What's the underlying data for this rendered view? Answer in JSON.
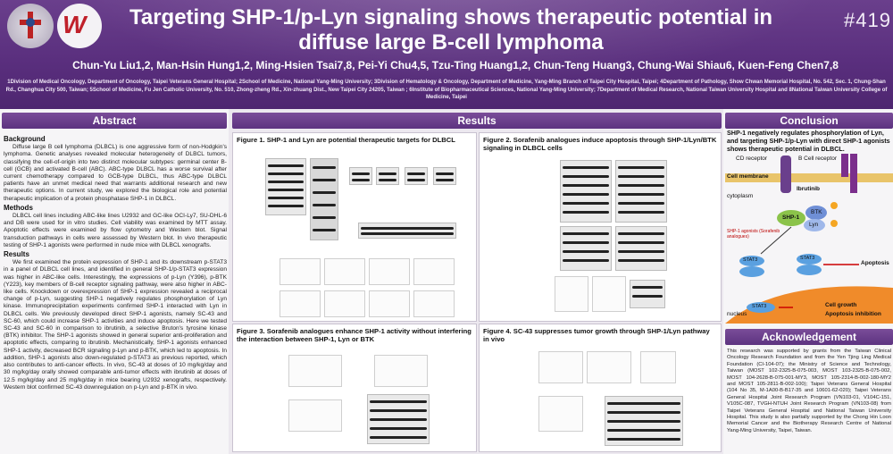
{
  "header": {
    "title": "Targeting SHP-1/p-Lyn signaling shows therapeutic potential in diffuse large B-cell lymphoma",
    "poster_number": "#419",
    "authors": "Chun-Yu Liu1,2, Man-Hsin Hung1,2, Ming-Hsien Tsai7,8, Pei-Yi Chu4,5, Tzu-Ting Huang1,2, Chun-Teng Huang3, Chung-Wai Shiau6, Kuen-Feng Chen7,8",
    "affiliations": "1Division of Medical Oncology, Department of Oncology, Taipei Veterans General Hospital; 2School of Medicine, National Yang-Ming University; 3Division of Hematology & Oncology, Department of Medicine, Yang-Ming Branch of Taipei City Hospital, Taipei; 4Department of Pathology, Show Chwan Memorial Hospital, No. 542, Sec. 1, Chung-Shan Rd., Changhua City 500, Taiwan; 5School of Medicine, Fu Jen Catholic University, No. 510, Zhong-zheng Rd., Xin-zhuang Dist., New Taipei City 24205, Taiwan ; 6Institute of Biopharmaceutical Sciences, National Yang-Ming University; 7Department of Medical Research, National Taiwan University Hospital and 8National Taiwan University College of Medicine, Taipei",
    "logo_text": "W"
  },
  "abstract": {
    "heading": "Abstract",
    "background_heading": "Background",
    "background": "Diffuse large B cell lymphoma (DLBCL) is one aggressive form of non-Hodgkin's lymphoma. Genetic analyses revealed molecular heterogeneity of DLBCL tumors, classifying the cell-of-origin into two distinct molecular subtypes: germinal center B-cell (GCB) and activated B-cell (ABC). ABC-type DLBCL has a worse survival after current chemotherapy compared to GCB-type DLBCL, thus ABC-type DLBCL patients have an unmet medical need that warrants additional research and new therapeutic options. In current study, we explored the biological role and potential therapeutic implication of a protein phosphatase SHP-1 in DLBCL.",
    "methods_heading": "Methods",
    "methods": "DLBCL cell lines including ABC-like lines U2932 and GC-like OCI-Ly7, SU-DHL-6 and DB were used for in vitro studies. Cell viability was examined by MTT assay. Apoptotic effects were examined by flow cytometry and Western blot. Signal transduction pathways in cells were assessed by Western blot. In vivo therapeutic testing of SHP-1 agonists were performed in nude mice with DLBCL xenografts.",
    "results_heading": "Results",
    "results": "We first examined the protein expression of SHP-1 and its downstream p-STAT3 in a panel of DLBCL cell lines, and identified in general SHP-1/p-STAT3 expression was higher in ABC-like cells. Interestingly, the expressions of p-Lyn (Y396), p-BTK (Y223), key members of B-cell receptor signaling pathway, were also higher in ABC-like cells. Knockdown or overexpression of SHP-1 expression revealed a reciprocal change of p-Lyn, suggesting SHP-1 negatively regulates phosphorylation of Lyn kinase. Immunoprecipitation experiments confirmed SHP-1 interacted with Lyn in DLBCL cells. We previously developed direct SHP-1 agonists, namely SC-43 and SC-60, which could increase SHP-1 activities and induce apoptosis. Here we tested SC-43 and SC-60 in comparison to ibrutinib, a selective Bruton's tyrosine kinase (BTK) inhibitor. The SHP-1 agonists showed in general superior anti-proliferation and apoptotic effects, comparing to ibrutinib. Mechanistically, SHP-1 agonists enhanced SHP-1 activity, decreased BCR signaling p-Lyn and p-BTK, which led to apoptosis. In addition, SHP-1 agonists also down-regulated p-STAT3 as previous reported, which also contributes to anti-cancer effects. In vivo, SC-43 at doses of 10 mg/kg/day and 30 mg/kg/day orally showed comparable anti-tumor effects with ibrutinib at doses of 12.5 mg/kg/day and 25 mg/kg/day in mice bearing U2932 xenografts, respectively. Western blot confirmed SC-43 downregulation on p-Lyn and p-BTK in vivo."
  },
  "results": {
    "heading": "Results",
    "fig1": "Figure 1. SHP-1 and Lyn are potential therapeutic targets for DLBCL",
    "fig2": "Figure 2. Sorafenib analogues induce apoptosis through SHP-1/Lyn/BTK signaling in DLBCL cells",
    "fig3": "Figure 3. Sorafenib analogues enhance SHP-1 activity without interfering the interaction between SHP-1, Lyn or BTK",
    "fig4": "Figure 4. SC-43 suppresses tumor growth through SHP-1/Lyn pathway in vivo"
  },
  "conclusion": {
    "heading": "Conclusion",
    "text": "SHP-1 negatively regulates phosphorylation of Lyn, and targeting SHP-1/p-Lyn with direct SHP-1 agonists shows therapeutic potential in DLBCL.",
    "diagram": {
      "cd_receptor": "CD receptor",
      "bcell_receptor": "B Cell receptor",
      "membrane": "Cell membrane",
      "cytoplasm": "cytoplasm",
      "ibrutinib": "Ibrutinib",
      "shp1": "SHP-1",
      "btk": "BTK",
      "lyn": "Lyn",
      "agonists": "SHP-1 agonists (Sorafenib analogues)",
      "stat3a": "STAT3",
      "stat3b": "STAT3",
      "stat3c": "STAT3",
      "apoptosis": "Apoptosis",
      "nucleus": "nucleus",
      "growth": "Cell growth",
      "apoptosis_inhibition": "Apoptosis inhibition",
      "p": "P"
    }
  },
  "acknowledgement": {
    "heading": "Acknowledgement",
    "text": "This research was supported by grants from the Taiwan Clinical Oncology Research Foundation and from the Yen Tjing Ling Medical Foundation (CI-104-07); the Ministry of Science and Technology, Taiwan (MOST 102-2325-B-075-003, MOST 103-2325-B-075-002, MOST 104-2628-B-075-001-MY3, MOST 105-2314-B-002-180-MY2 and MOST 105-2811-B-002-100); Taipei Veterans General Hospital (104 No 35, M-1A00-B-B17-35 and 10601-62-020); Taipei Veterans General Hospital Joint Research Program (VN103-01, V104C-151, V105C-087, TVGH-NTUH Joint Research Program (VN103-08) from Taipei Veterans General Hospital and National Taiwan University Hospital. This study is also partially supported by the Chong Hin Loon Memorial Cancer and the Biotherapy Research Centre of National Yang-Ming University, Taipei, Taiwan."
  },
  "colors": {
    "header": "#5a2f7e",
    "section": "#6b3f8d",
    "accent": "#f5a623"
  }
}
